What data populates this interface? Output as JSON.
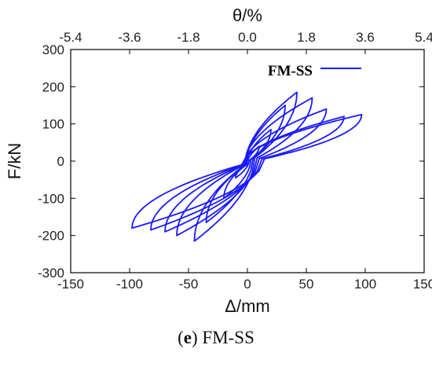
{
  "chart_data": {
    "type": "line",
    "title": "",
    "xlabel": "Δ/mm",
    "ylabel": "F/kN",
    "x2label": "θ/%",
    "xlim": [
      -150,
      150
    ],
    "ylim": [
      -300,
      300
    ],
    "x_ticks": [
      -150,
      -100,
      -50,
      0,
      50,
      100,
      150
    ],
    "y_ticks": [
      -300,
      -200,
      -100,
      0,
      100,
      200,
      300
    ],
    "x2_ticks": [
      "-5.4",
      "-3.6",
      "-1.8",
      "0.0",
      "1.8",
      "3.6",
      "5.4"
    ],
    "grid": false,
    "legend": {
      "placement": "top-right"
    },
    "series": [
      {
        "name": "FM-SS",
        "color": "#1a1aff",
        "loops": [
          {
            "pos_peak": [
              10,
              40
            ],
            "neg_peak": [
              -10,
              -45
            ]
          },
          {
            "pos_peak": [
              20,
              85
            ],
            "neg_peak": [
              -20,
              -100
            ]
          },
          {
            "pos_peak": [
              32,
              150
            ],
            "neg_peak": [
              -35,
              -165
            ]
          },
          {
            "pos_peak": [
              42,
              185
            ],
            "neg_peak": [
              -45,
              -215
            ]
          },
          {
            "pos_peak": [
              55,
              170
            ],
            "neg_peak": [
              -60,
              -200
            ]
          },
          {
            "pos_peak": [
              67,
              140
            ],
            "neg_peak": [
              -70,
              -190
            ]
          },
          {
            "pos_peak": [
              82,
              120
            ],
            "neg_peak": [
              -82,
              -185
            ]
          },
          {
            "pos_peak": [
              97,
              125
            ],
            "neg_peak": [
              -98,
              -180
            ]
          }
        ]
      }
    ]
  },
  "caption": {
    "letter": "e",
    "open": "(",
    "close": ")",
    "text": " FM-SS"
  }
}
